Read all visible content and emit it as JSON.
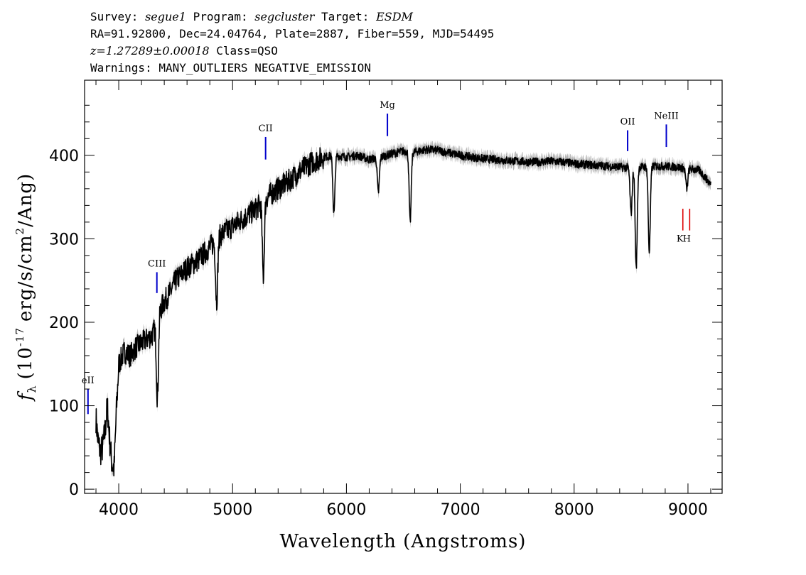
{
  "header": {
    "survey_label": "Survey:",
    "survey": "segue1",
    "program_label": "Program:",
    "program": "segcluster",
    "target_label": "Target:",
    "target": "ESDM",
    "line2": "RA=91.92800, Dec=24.04764, Plate=2887, Fiber=559, MJD=54495",
    "redshift": "z=1.27289±0.00018",
    "class_text": "Class=QSO",
    "warnings": "Warnings: MANY_OUTLIERS NEGATIVE_EMISSION"
  },
  "colors": {
    "spectrum": "#000000",
    "error_band": "#b4b4b4",
    "emission_marker": "#0000cc",
    "absorption_marker": "#dd0000"
  },
  "chart_data": {
    "type": "line",
    "xlabel": "Wavelength (Angstroms)",
    "ylabel_main": "f",
    "ylabel_sub": "λ",
    "ylabel_units_pre": "(10",
    "ylabel_exp1": "-17",
    "ylabel_units_mid": "erg/s/cm",
    "ylabel_exp2": "2",
    "ylabel_units_post": "/Ang)",
    "xlim": [
      3700,
      9300
    ],
    "ylim": [
      -5,
      490
    ],
    "xticks": [
      4000,
      5000,
      6000,
      7000,
      8000,
      9000
    ],
    "xtick_labels": [
      "4000",
      "5000",
      "6000",
      "7000",
      "8000",
      "9000"
    ],
    "yticks": [
      0,
      100,
      200,
      300,
      400
    ],
    "ytick_labels": [
      "0",
      "100",
      "200",
      "300",
      "400"
    ],
    "series": [
      {
        "x": [
          3800,
          3820,
          3840,
          3860,
          3880,
          3900,
          3920,
          3940,
          3960,
          3980,
          4000,
          4050,
          4100,
          4150,
          4200,
          4250,
          4300,
          4350,
          4400,
          4450,
          4500,
          4600,
          4700,
          4800,
          4900,
          5000,
          5100,
          5200,
          5300,
          5400,
          5500,
          5600,
          5700,
          5800,
          5900,
          6000,
          6100,
          6200,
          6300,
          6400,
          6500,
          6600,
          6700,
          6800,
          6900,
          7000,
          7100,
          7200,
          7300,
          7400,
          7500,
          7600,
          7700,
          7800,
          7900,
          8000,
          8100,
          8200,
          8300,
          8400,
          8500,
          8600,
          8700,
          8800,
          8900,
          9000,
          9100,
          9200
        ],
        "y": [
          85,
          55,
          45,
          50,
          70,
          100,
          60,
          30,
          25,
          95,
          150,
          165,
          160,
          170,
          175,
          180,
          185,
          210,
          225,
          235,
          250,
          265,
          275,
          290,
          305,
          315,
          325,
          335,
          350,
          360,
          370,
          382,
          392,
          398,
          400,
          398,
          400,
          395,
          398,
          402,
          405,
          404,
          407,
          406,
          403,
          400,
          398,
          396,
          395,
          394,
          393,
          392,
          392,
          393,
          392,
          390,
          389,
          388,
          387,
          386,
          385,
          386,
          387,
          387,
          386,
          384,
          382,
          365
        ]
      }
    ],
    "absorption_dips": [
      {
        "x": 4340,
        "y": 110
      },
      {
        "x": 4860,
        "y": 225
      },
      {
        "x": 5270,
        "y": 255
      },
      {
        "x": 5890,
        "y": 330
      },
      {
        "x": 6280,
        "y": 355
      },
      {
        "x": 6560,
        "y": 320
      },
      {
        "x": 8500,
        "y": 330
      },
      {
        "x": 8545,
        "y": 265
      },
      {
        "x": 8660,
        "y": 285
      },
      {
        "x": 8990,
        "y": 360
      }
    ],
    "emission_lines": [
      {
        "label": "eII",
        "x": 3730,
        "y_bottom": 90,
        "y_top": 120
      },
      {
        "label": "CIII",
        "x": 4335,
        "y_bottom": 235,
        "y_top": 260
      },
      {
        "label": "CII",
        "x": 5290,
        "y_bottom": 395,
        "y_top": 422
      },
      {
        "label": "Mg",
        "x": 6360,
        "y_bottom": 423,
        "y_top": 450
      },
      {
        "label": "OII",
        "x": 8470,
        "y_bottom": 405,
        "y_top": 430
      },
      {
        "label": "NeIII",
        "x": 8810,
        "y_bottom": 410,
        "y_top": 437
      }
    ],
    "absorption_lines": [
      {
        "label": "K",
        "x": 8955,
        "y_bottom": 310,
        "y_top": 336
      },
      {
        "label": "H",
        "x": 9015,
        "y_bottom": 310,
        "y_top": 336
      }
    ]
  }
}
